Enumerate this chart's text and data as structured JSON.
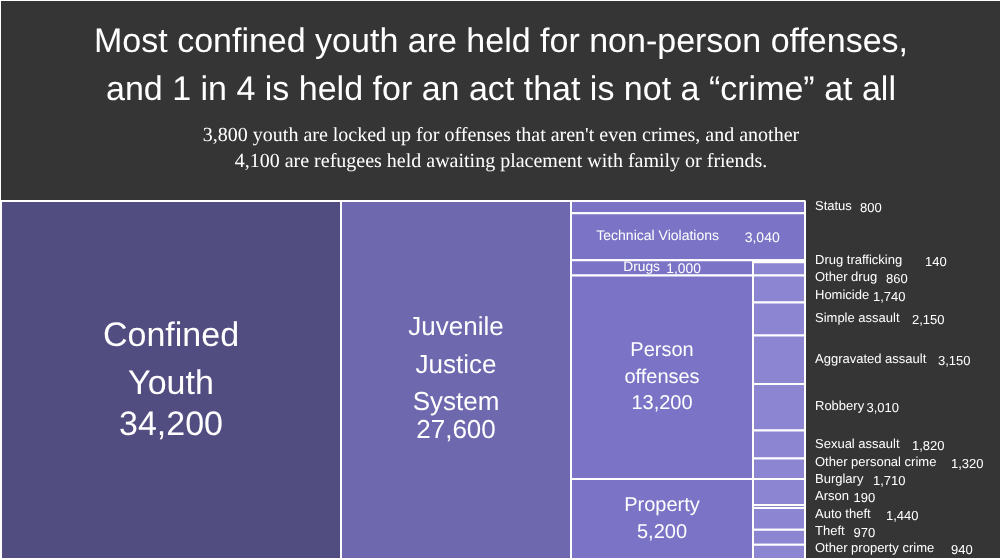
{
  "chart_data": {
    "type": "other",
    "title": "Most confined youth are held for non-person offenses,\nand 1 in 4 is held for an act that is not a “crime” at all",
    "subtitle": "3,800 youth are locked up for offenses that aren't even crimes, and another\n4,100 are refugees held awaiting placement with family or friends.",
    "categories": [
      "Confined Youth",
      "Juvenile Justice System",
      "Status",
      "Technical Violations",
      "Drugs",
      "Drug trafficking",
      "Other drug",
      "Person offenses",
      "Homicide",
      "Simple assault",
      "Aggravated assault",
      "Robbery",
      "Sexual assault",
      "Other personal crime",
      "Property",
      "Burglary",
      "Arson",
      "Auto theft",
      "Theft",
      "Other property crime"
    ],
    "values": [
      34200,
      27600,
      800,
      3040,
      1000,
      140,
      860,
      13200,
      1740,
      2150,
      3150,
      3010,
      1820,
      1320,
      5200,
      1710,
      190,
      1440,
      970,
      940
    ],
    "value_labels": [
      "34,200",
      "27,600",
      "800",
      "3,040",
      "1,000",
      "140",
      "860",
      "13,200",
      "1,740",
      "2,150",
      "3,150",
      "3,010",
      "1,820",
      "1,320",
      "5,200",
      "1,710",
      "190",
      "1,440",
      "970",
      "940"
    ],
    "colors": [
      "#524d80",
      "#6e68ae",
      "#7b74c6",
      "#7b74c6",
      "#7b74c6",
      "#8b85d2",
      "#8b85d2",
      "#7b74c6",
      "#8b85d2",
      "#8b85d2",
      "#8b85d2",
      "#8b85d2",
      "#8b85d2",
      "#8b85d2",
      "#7b74c6",
      "#8b85d2",
      "#8b85d2",
      "#8b85d2",
      "#8b85d2",
      "#8b85d2"
    ]
  }
}
